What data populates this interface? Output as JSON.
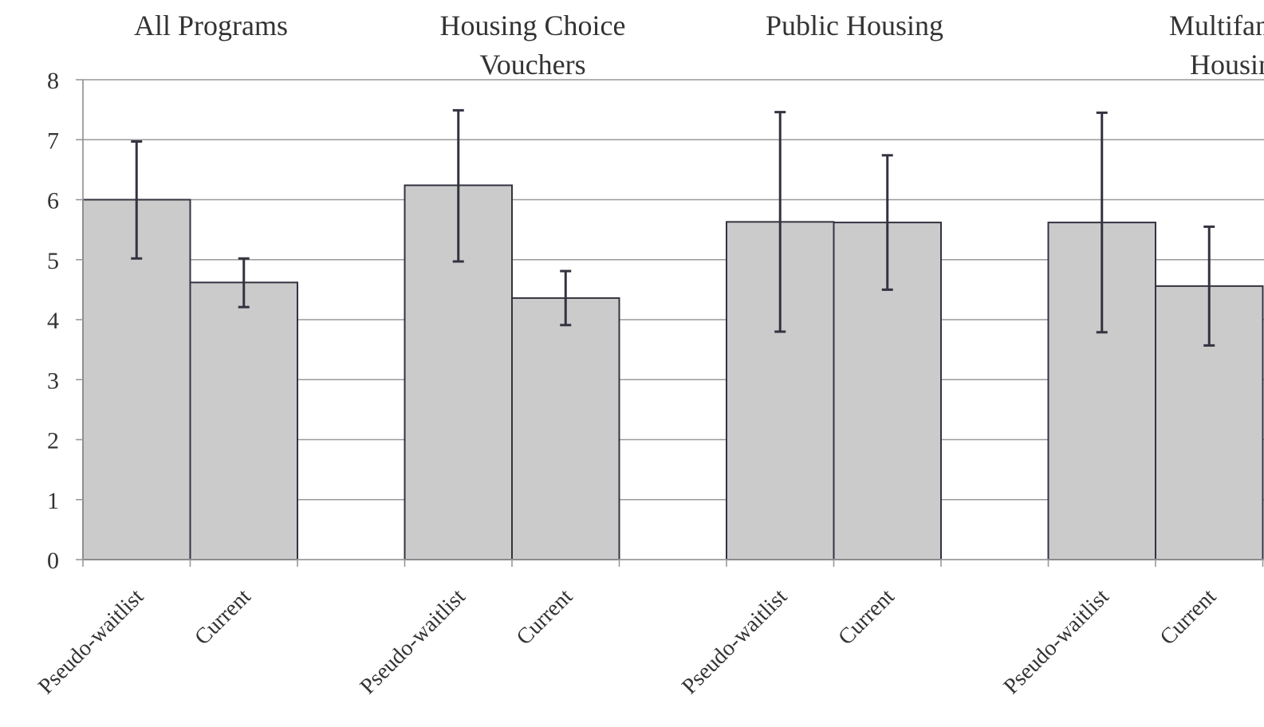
{
  "chart_data": {
    "type": "bar",
    "ylim": [
      0,
      8
    ],
    "y_ticks": [
      "0",
      "1",
      "2",
      "3",
      "4",
      "5",
      "6",
      "7",
      "8"
    ],
    "grid": true,
    "colors": {
      "bar_fill": "#cbcbcb",
      "bar_stroke": "#333340",
      "grid": "#999999",
      "axis": "#999999",
      "error_bar": "#333340"
    },
    "groups": [
      {
        "title_lines": [
          "All Programs"
        ],
        "bars": [
          {
            "label": "Pseudo-waitlist",
            "value": 6.0,
            "err_low": 5.02,
            "err_high": 6.97
          },
          {
            "label": "Current",
            "value": 4.62,
            "err_low": 4.21,
            "err_high": 5.02
          }
        ]
      },
      {
        "title_lines": [
          "Housing Choice",
          "Vouchers"
        ],
        "bars": [
          {
            "label": "Pseudo-waitlist",
            "value": 6.24,
            "err_low": 4.97,
            "err_high": 7.49
          },
          {
            "label": "Current",
            "value": 4.36,
            "err_low": 3.91,
            "err_high": 4.81
          }
        ]
      },
      {
        "title_lines": [
          "Public Housing"
        ],
        "bars": [
          {
            "label": "Pseudo-waitlist",
            "value": 5.63,
            "err_low": 3.8,
            "err_high": 7.46
          },
          {
            "label": "Current",
            "value": 5.62,
            "err_low": 4.5,
            "err_high": 6.74
          }
        ]
      },
      {
        "title_lines": [
          "Multifamily",
          "Housing"
        ],
        "bars": [
          {
            "label": "Pseudo-waitlist",
            "value": 5.62,
            "err_low": 3.79,
            "err_high": 7.45
          },
          {
            "label": "Current",
            "value": 4.56,
            "err_low": 3.57,
            "err_high": 5.55
          }
        ]
      }
    ]
  }
}
